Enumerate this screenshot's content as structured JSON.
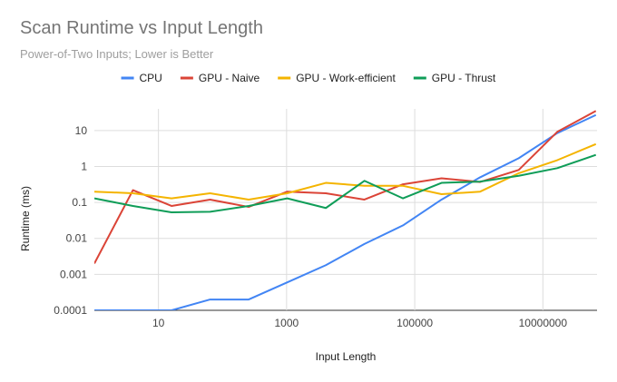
{
  "chart_data": {
    "type": "line",
    "title": "Scan Runtime vs Input Length",
    "subtitle": "Power-of-Two Inputs; Lower is Better",
    "xlabel": "Input Length",
    "ylabel": "Runtime (ms)",
    "x_scale": "log",
    "y_scale": "log",
    "xlim": [
      1,
      70000000
    ],
    "ylim": [
      0.0001,
      40
    ],
    "x_ticks": [
      10,
      1000,
      100000,
      10000000
    ],
    "x_tick_labels": [
      "10",
      "1000",
      "100000",
      "10000000"
    ],
    "y_ticks": [
      0.0001,
      0.001,
      0.01,
      0.1,
      1,
      10
    ],
    "y_tick_labels": [
      "0.0001",
      "0.001",
      "0.01",
      "0.1",
      "1",
      "10"
    ],
    "grid": true,
    "legend_position": "top",
    "x": [
      1,
      4,
      16,
      64,
      256,
      1024,
      4096,
      16384,
      65536,
      262144,
      1048576,
      4194304,
      16777216,
      67108864
    ],
    "series": [
      {
        "name": "CPU",
        "color": "#4285F4",
        "values": [
          0.0001,
          0.0001,
          0.0001,
          0.0002,
          0.0002,
          0.0006,
          0.0018,
          0.007,
          0.023,
          0.12,
          0.5,
          1.7,
          8.5,
          27
        ]
      },
      {
        "name": "GPU - Naive",
        "color": "#DB4437",
        "values": [
          0.002,
          0.22,
          0.08,
          0.12,
          0.075,
          0.2,
          0.18,
          0.12,
          0.32,
          0.47,
          0.37,
          0.8,
          9.2,
          35
        ]
      },
      {
        "name": "GPU - Work-efficient",
        "color": "#F4B400",
        "values": [
          0.2,
          0.18,
          0.13,
          0.18,
          0.12,
          0.18,
          0.35,
          0.29,
          0.29,
          0.17,
          0.2,
          0.65,
          1.5,
          4.2
        ]
      },
      {
        "name": "GPU - Thrust",
        "color": "#0F9D58",
        "values": [
          0.13,
          0.08,
          0.053,
          0.055,
          0.08,
          0.13,
          0.07,
          0.4,
          0.13,
          0.35,
          0.38,
          0.55,
          0.9,
          2.1
        ]
      }
    ]
  }
}
